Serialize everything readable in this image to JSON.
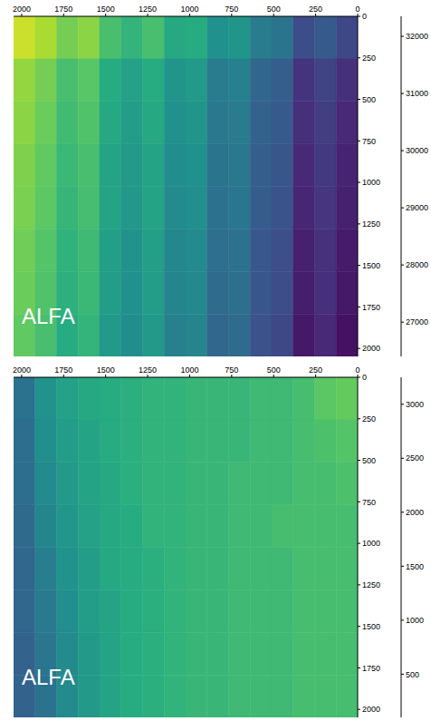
{
  "chart_data": [
    {
      "type": "heatmap",
      "annotation": "ALFA",
      "xlim": [
        2048,
        0
      ],
      "xticks": [
        2000,
        1750,
        1500,
        1250,
        1000,
        750,
        500,
        250,
        0
      ],
      "ylim": [
        2048,
        0
      ],
      "yticks": [
        0,
        250,
        500,
        750,
        1000,
        1250,
        1500,
        1750,
        2000
      ],
      "cells": [
        [
          31900,
          31600,
          31100,
          31300,
          30600,
          30300,
          30600,
          30000,
          30100,
          29400,
          29500,
          28900,
          28700,
          27800,
          28100,
          27700
        ],
        [
          31400,
          31100,
          30600,
          30800,
          30100,
          29800,
          30100,
          29500,
          29600,
          28900,
          29000,
          28400,
          28200,
          27300,
          27600,
          27200
        ],
        [
          31300,
          31000,
          30500,
          30700,
          30000,
          29700,
          30000,
          29400,
          29500,
          28800,
          28900,
          28300,
          28100,
          27200,
          27500,
          27100
        ],
        [
          31200,
          30900,
          30400,
          30600,
          29900,
          29600,
          29900,
          29300,
          29400,
          28700,
          28800,
          28200,
          28000,
          27100,
          27400,
          27000
        ],
        [
          31150,
          30850,
          30350,
          30550,
          29850,
          29550,
          29850,
          29250,
          29350,
          28650,
          28750,
          28150,
          27950,
          27050,
          27350,
          26950
        ],
        [
          31050,
          30750,
          30250,
          30450,
          29750,
          29450,
          29750,
          29150,
          29250,
          28550,
          28650,
          28050,
          27850,
          26950,
          27250,
          26850
        ],
        [
          31000,
          30700,
          30200,
          30400,
          29700,
          29400,
          29700,
          29100,
          29200,
          28500,
          28600,
          28000,
          27800,
          26900,
          27200,
          26800
        ],
        [
          30900,
          30600,
          30100,
          30300,
          29600,
          29300,
          29600,
          29000,
          29100,
          28400,
          28500,
          27900,
          27700,
          26800,
          27100,
          26700
        ]
      ],
      "colorbar": {
        "lim": [
          26400,
          32350
        ],
        "ticks": [
          27000,
          28000,
          29000,
          30000,
          31000,
          32000
        ]
      }
    },
    {
      "type": "heatmap",
      "annotation": "ALFA",
      "xlim": [
        2048,
        0
      ],
      "xticks": [
        2000,
        1750,
        1500,
        1250,
        1000,
        750,
        500,
        250,
        0
      ],
      "ylim": [
        2048,
        0
      ],
      "yticks": [
        0,
        250,
        500,
        750,
        1000,
        1250,
        1500,
        1750,
        2000
      ],
      "cells": [
        [
          1300,
          1700,
          1900,
          2000,
          2050,
          2100,
          2150,
          2150,
          2200,
          2200,
          2200,
          2250,
          2250,
          2300,
          2450,
          2500
        ],
        [
          1250,
          1650,
          1850,
          1950,
          2050,
          2100,
          2150,
          2150,
          2200,
          2200,
          2200,
          2250,
          2250,
          2300,
          2350,
          2400
        ],
        [
          1250,
          1600,
          1800,
          1950,
          2000,
          2100,
          2150,
          2150,
          2200,
          2200,
          2250,
          2250,
          2250,
          2300,
          2300,
          2350
        ],
        [
          1200,
          1550,
          1750,
          1900,
          2000,
          2050,
          2150,
          2150,
          2200,
          2200,
          2250,
          2250,
          2300,
          2300,
          2300,
          2300
        ],
        [
          1150,
          1450,
          1700,
          1850,
          2000,
          2050,
          2100,
          2150,
          2200,
          2200,
          2250,
          2250,
          2250,
          2300,
          2300,
          2300
        ],
        [
          1150,
          1400,
          1650,
          1850,
          1950,
          2050,
          2100,
          2150,
          2200,
          2200,
          2250,
          2250,
          2250,
          2300,
          2300,
          2300
        ],
        [
          1100,
          1350,
          1600,
          1800,
          1950,
          2050,
          2100,
          2150,
          2200,
          2200,
          2250,
          2250,
          2250,
          2300,
          2300,
          2300
        ],
        [
          1100,
          1300,
          1600,
          1800,
          1950,
          2050,
          2100,
          2150,
          2200,
          2200,
          2250,
          2250,
          2250,
          2300,
          2300,
          2300
        ]
      ],
      "colorbar": {
        "lim": [
          100,
          3250
        ],
        "ticks": [
          500,
          1000,
          1500,
          2000,
          2500,
          3000
        ]
      }
    }
  ]
}
